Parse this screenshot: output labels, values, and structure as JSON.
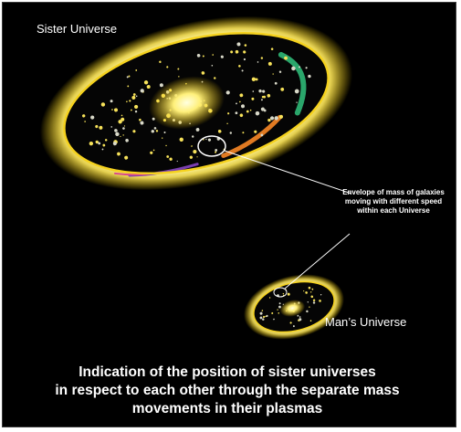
{
  "labels": {
    "sister_universe": "Sister Universe",
    "mans_universe": "Man’s Universe",
    "envelope": "Envelope of mass of galaxies moving with different speed within each Universe"
  },
  "caption": [
    "Indication of the position of sister universes",
    "in respect to each other through the separate mass",
    "movements in their plasmas"
  ],
  "colors": {
    "background": "#000000",
    "glow": "#ffe85a",
    "ring": "#f5d21e",
    "text": "#ffffff",
    "plasma_bands": [
      "#2aa66b",
      "#e07a22",
      "#7a3fb0",
      "#d94a8a"
    ]
  }
}
